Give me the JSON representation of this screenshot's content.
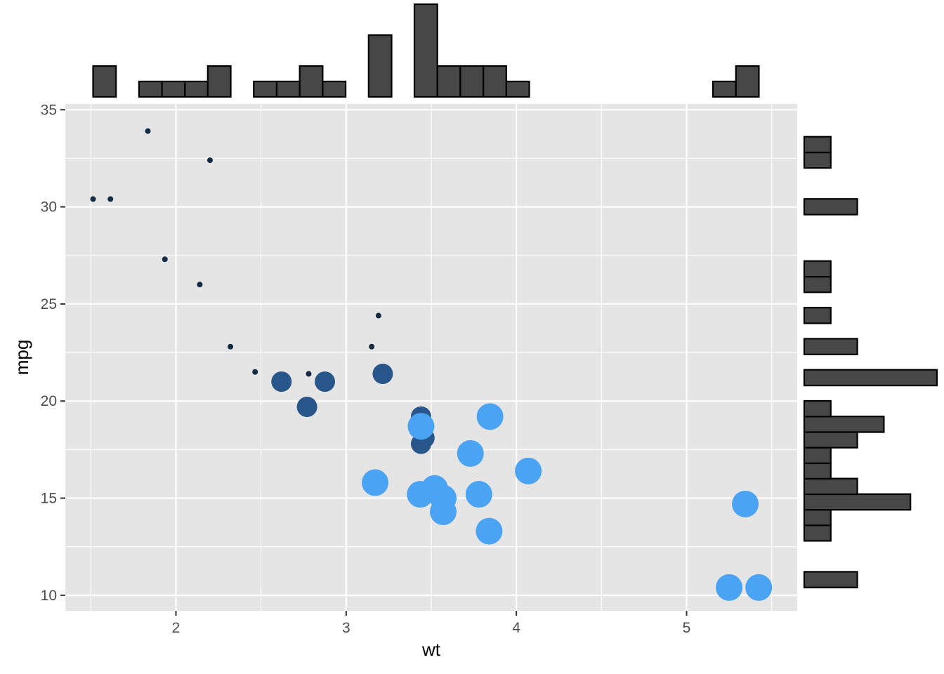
{
  "chart_data": {
    "type": "scatter",
    "title": "",
    "xlabel": "wt",
    "ylabel": "mpg",
    "xlim": [
      1.35,
      5.65
    ],
    "ylim": [
      9.2,
      35.3
    ],
    "x_ticks": [
      2,
      3,
      4,
      5
    ],
    "y_ticks": [
      10,
      15,
      20,
      25,
      30,
      35
    ],
    "grid": true,
    "legend": "none",
    "colors": {
      "panel_background": "#e5e5e5",
      "grid_line": "#ffffff",
      "small_points": "#132b43",
      "medium_points": "#28568a",
      "large_points": "#4aa3f3",
      "histogram_fill": "#474747",
      "histogram_outline": "#000000"
    },
    "series": [
      {
        "size_group": "small",
        "points": [
          {
            "x": 1.513,
            "y": 30.4
          },
          {
            "x": 1.615,
            "y": 30.4
          },
          {
            "x": 1.835,
            "y": 33.9
          },
          {
            "x": 1.935,
            "y": 27.3
          },
          {
            "x": 2.14,
            "y": 26.0
          },
          {
            "x": 2.2,
            "y": 32.4
          },
          {
            "x": 2.32,
            "y": 22.8
          },
          {
            "x": 2.465,
            "y": 21.5
          },
          {
            "x": 2.78,
            "y": 21.4
          },
          {
            "x": 3.15,
            "y": 22.8
          },
          {
            "x": 3.19,
            "y": 24.4
          }
        ]
      },
      {
        "size_group": "medium",
        "points": [
          {
            "x": 2.62,
            "y": 21.0
          },
          {
            "x": 2.77,
            "y": 19.7
          },
          {
            "x": 2.875,
            "y": 21.0
          },
          {
            "x": 3.215,
            "y": 21.4
          },
          {
            "x": 3.44,
            "y": 19.2
          },
          {
            "x": 3.44,
            "y": 17.8
          },
          {
            "x": 3.46,
            "y": 18.1
          }
        ]
      },
      {
        "size_group": "large",
        "points": [
          {
            "x": 3.17,
            "y": 15.8
          },
          {
            "x": 3.435,
            "y": 15.2
          },
          {
            "x": 3.44,
            "y": 18.7
          },
          {
            "x": 3.52,
            "y": 15.5
          },
          {
            "x": 3.57,
            "y": 15.0
          },
          {
            "x": 3.57,
            "y": 14.3
          },
          {
            "x": 3.73,
            "y": 17.3
          },
          {
            "x": 3.78,
            "y": 15.2
          },
          {
            "x": 3.84,
            "y": 13.3
          },
          {
            "x": 3.845,
            "y": 19.2
          },
          {
            "x": 4.07,
            "y": 16.4
          },
          {
            "x": 5.25,
            "y": 10.4
          },
          {
            "x": 5.345,
            "y": 14.7
          },
          {
            "x": 5.424,
            "y": 10.4
          }
        ]
      }
    ],
    "x_histogram": {
      "bin_width": 0.1349,
      "bins": [
        {
          "start": 1.513,
          "count": 2
        },
        {
          "start": 1.648,
          "count": 0
        },
        {
          "start": 1.783,
          "count": 1
        },
        {
          "start": 1.918,
          "count": 1
        },
        {
          "start": 2.053,
          "count": 1
        },
        {
          "start": 2.187,
          "count": 2
        },
        {
          "start": 2.322,
          "count": 0
        },
        {
          "start": 2.457,
          "count": 1
        },
        {
          "start": 2.592,
          "count": 1
        },
        {
          "start": 2.727,
          "count": 2
        },
        {
          "start": 2.862,
          "count": 1
        },
        {
          "start": 2.997,
          "count": 0
        },
        {
          "start": 3.132,
          "count": 4
        },
        {
          "start": 3.267,
          "count": 0
        },
        {
          "start": 3.401,
          "count": 6
        },
        {
          "start": 3.536,
          "count": 2
        },
        {
          "start": 3.671,
          "count": 2
        },
        {
          "start": 3.806,
          "count": 2
        },
        {
          "start": 3.941,
          "count": 1
        },
        {
          "start": 4.076,
          "count": 0
        },
        {
          "start": 4.211,
          "count": 0
        },
        {
          "start": 4.346,
          "count": 0
        },
        {
          "start": 4.481,
          "count": 0
        },
        {
          "start": 4.615,
          "count": 0
        },
        {
          "start": 4.75,
          "count": 0
        },
        {
          "start": 4.885,
          "count": 0
        },
        {
          "start": 5.02,
          "count": 0
        },
        {
          "start": 5.155,
          "count": 1
        },
        {
          "start": 5.29,
          "count": 2
        }
      ]
    },
    "y_histogram": {
      "bin_width": 0.81,
      "bins": [
        {
          "start": 10.4,
          "count": 2
        },
        {
          "start": 11.2,
          "count": 0
        },
        {
          "start": 12.0,
          "count": 0
        },
        {
          "start": 12.8,
          "count": 1
        },
        {
          "start": 13.6,
          "count": 1
        },
        {
          "start": 14.4,
          "count": 4
        },
        {
          "start": 15.2,
          "count": 2
        },
        {
          "start": 16.0,
          "count": 1
        },
        {
          "start": 16.8,
          "count": 1
        },
        {
          "start": 17.6,
          "count": 2
        },
        {
          "start": 18.4,
          "count": 3
        },
        {
          "start": 19.2,
          "count": 1
        },
        {
          "start": 20.0,
          "count": 0
        },
        {
          "start": 20.8,
          "count": 5
        },
        {
          "start": 21.6,
          "count": 0
        },
        {
          "start": 22.4,
          "count": 2
        },
        {
          "start": 23.2,
          "count": 0
        },
        {
          "start": 24.0,
          "count": 1
        },
        {
          "start": 24.8,
          "count": 0
        },
        {
          "start": 25.6,
          "count": 1
        },
        {
          "start": 26.4,
          "count": 1
        },
        {
          "start": 27.2,
          "count": 0
        },
        {
          "start": 28.0,
          "count": 0
        },
        {
          "start": 28.8,
          "count": 0
        },
        {
          "start": 29.6,
          "count": 2
        },
        {
          "start": 30.4,
          "count": 0
        },
        {
          "start": 31.2,
          "count": 0
        },
        {
          "start": 32.0,
          "count": 1
        },
        {
          "start": 32.8,
          "count": 1
        }
      ]
    }
  }
}
